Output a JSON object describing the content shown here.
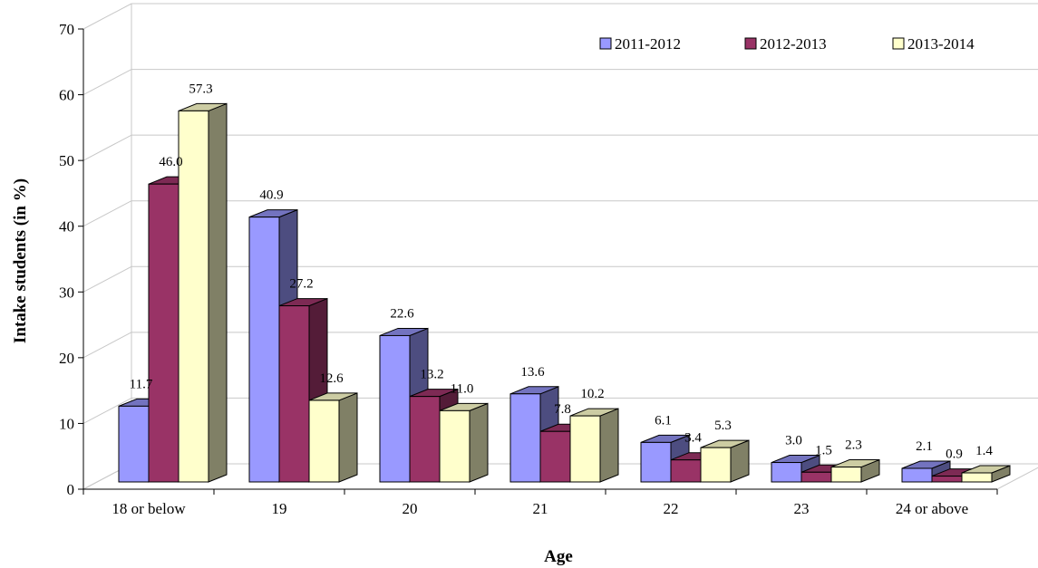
{
  "chart_data": {
    "type": "bar",
    "title": "",
    "xlabel": "Age",
    "ylabel": "Intake students (in %)",
    "ylim": [
      0,
      70
    ],
    "yticks": [
      0,
      10,
      20,
      30,
      40,
      50,
      60,
      70
    ],
    "grid": true,
    "legend_position": "top-right",
    "three_d": true,
    "categories": [
      "18 or below",
      "19",
      "20",
      "21",
      "22",
      "23",
      "24 or above"
    ],
    "series": [
      {
        "name": "2011-2012",
        "color": "#9999ff",
        "values": [
          11.7,
          40.9,
          22.6,
          13.6,
          6.1,
          3.0,
          2.1
        ],
        "labels": [
          "11.7",
          "40.9",
          "22.6",
          "13.6",
          "6.1",
          "3.0",
          "2.1"
        ]
      },
      {
        "name": "2012-2013",
        "color": "#993366",
        "values": [
          46.0,
          27.2,
          13.2,
          7.8,
          3.4,
          1.5,
          0.9
        ],
        "labels": [
          "46.0",
          "27.2",
          "13.2",
          "7.8",
          "3.4",
          "1.5",
          "0.9"
        ]
      },
      {
        "name": "2013-2014",
        "color": "#ffffcc",
        "values": [
          57.3,
          12.6,
          11.0,
          10.2,
          5.3,
          2.3,
          1.4
        ],
        "labels": [
          "57.3",
          "12.6",
          "11.0",
          "10.2",
          "5.3",
          "2.3",
          "1.4"
        ]
      }
    ]
  }
}
